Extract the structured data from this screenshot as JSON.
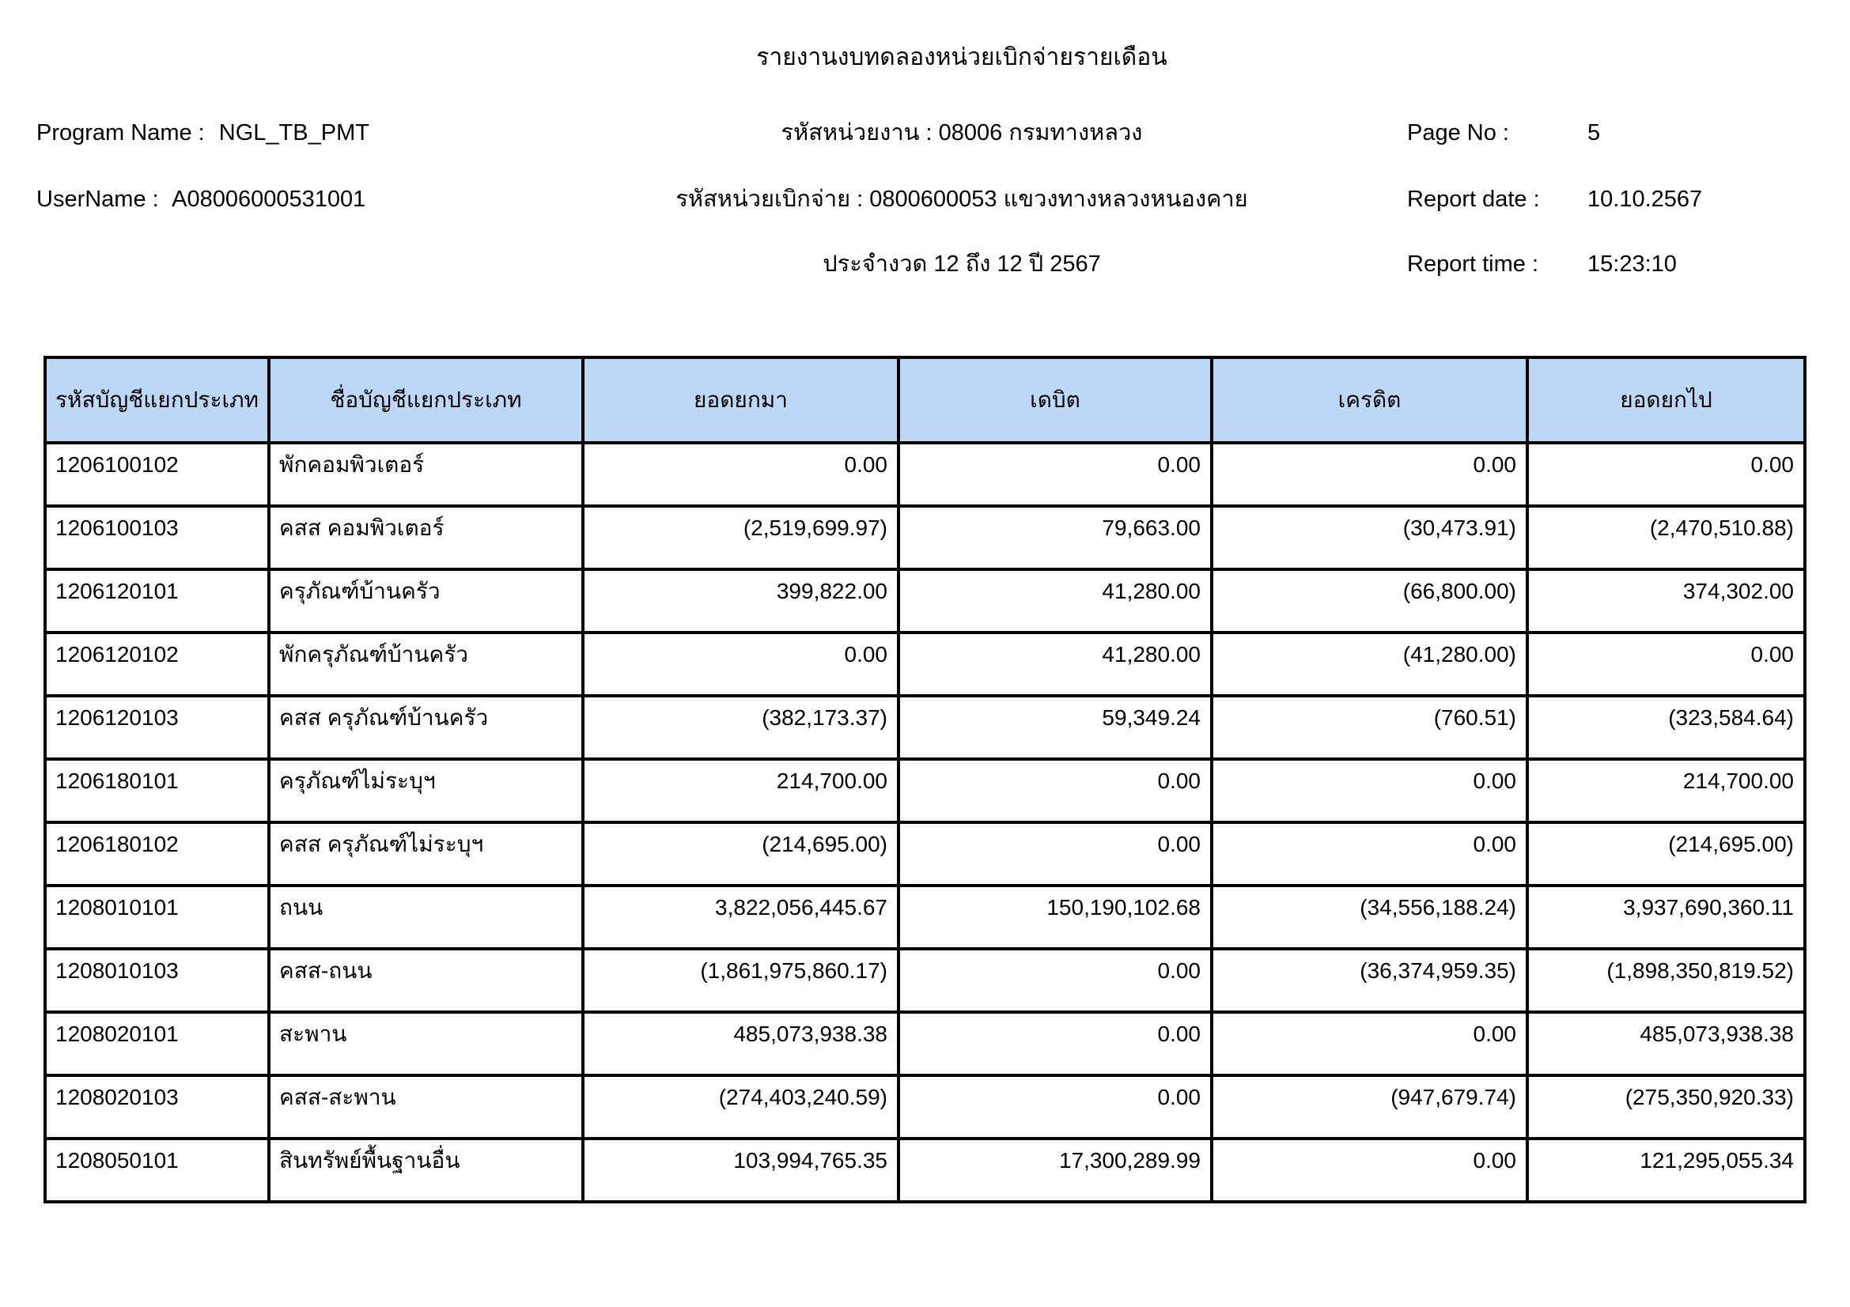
{
  "report": {
    "title": "รายงานงบทดลองหน่วยเบิกจ่ายรายเดือน",
    "program_name_label": "Program Name :",
    "program_name_value": "NGL_TB_PMT",
    "username_label": "UserName :",
    "username_value": "A08006000531001",
    "agency_line": "รหัสหน่วยงาน : 08006 กรมทางหลวง",
    "disbursement_unit_line": "รหัสหน่วยเบิกจ่าย : 0800600053 แขวงทางหลวงหนองคาย",
    "period_line": "ประจำงวด 12 ถึง 12 ปี 2567",
    "page_no_label": "Page No :",
    "page_no_value": "5",
    "report_date_label": "Report date :",
    "report_date_value": "10.10.2567",
    "report_time_label": "Report time :",
    "report_time_value": "15:23:10"
  },
  "table": {
    "header_bg": "#BDD8F7",
    "border_color": "#000000",
    "columns": [
      "รหัสบัญชีแยกประเภท",
      "ชื่อบัญชีแยกประเภท",
      "ยอดยกมา",
      "เดบิต",
      "เครดิต",
      "ยอดยกไป"
    ],
    "rows": [
      [
        "1206100102",
        "พักคอมพิวเตอร์",
        "0.00",
        "0.00",
        "0.00",
        "0.00"
      ],
      [
        "1206100103",
        "คสส คอมพิวเตอร์",
        "(2,519,699.97)",
        "79,663.00",
        "(30,473.91)",
        "(2,470,510.88)"
      ],
      [
        "1206120101",
        "ครุภัณฑ์บ้านครัว",
        "399,822.00",
        "41,280.00",
        "(66,800.00)",
        "374,302.00"
      ],
      [
        "1206120102",
        "พักครุภัณฑ์บ้านครัว",
        "0.00",
        "41,280.00",
        "(41,280.00)",
        "0.00"
      ],
      [
        "1206120103",
        "คสส ครุภัณฑ์บ้านครัว",
        "(382,173.37)",
        "59,349.24",
        "(760.51)",
        "(323,584.64)"
      ],
      [
        "1206180101",
        "ครุภัณฑ์ไม่ระบุฯ",
        "214,700.00",
        "0.00",
        "0.00",
        "214,700.00"
      ],
      [
        "1206180102",
        "คสส ครุภัณฑ์ไม่ระบุฯ",
        "(214,695.00)",
        "0.00",
        "0.00",
        "(214,695.00)"
      ],
      [
        "1208010101",
        "ถนน",
        "3,822,056,445.67",
        "150,190,102.68",
        "(34,556,188.24)",
        "3,937,690,360.11"
      ],
      [
        "1208010103",
        "คสส-ถนน",
        "(1,861,975,860.17)",
        "0.00",
        "(36,374,959.35)",
        "(1,898,350,819.52)"
      ],
      [
        "1208020101",
        "สะพาน",
        "485,073,938.38",
        "0.00",
        "0.00",
        "485,073,938.38"
      ],
      [
        "1208020103",
        "คสส-สะพาน",
        "(274,403,240.59)",
        "0.00",
        "(947,679.74)",
        "(275,350,920.33)"
      ],
      [
        "1208050101",
        "สินทรัพย์พื้นฐานอื่น",
        "103,994,765.35",
        "17,300,289.99",
        "0.00",
        "121,295,055.34"
      ]
    ]
  }
}
